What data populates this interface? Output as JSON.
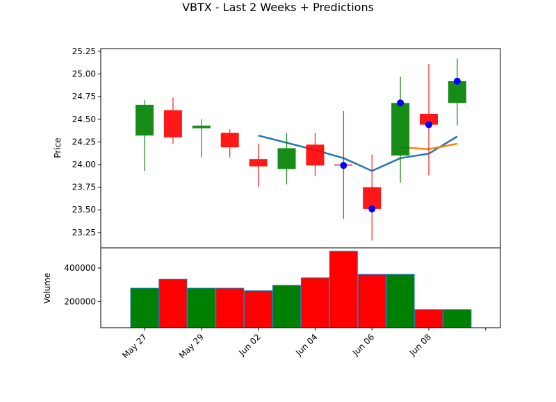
{
  "chart_data": {
    "type": "candlestick",
    "title": "VBTX - Last 2 Weeks + Predictions",
    "x_tick_labels": [
      "May 27",
      "May 29",
      "Jun 02",
      "Jun 04",
      "Jun 06",
      "Jun 08"
    ],
    "price_panel": {
      "ylabel": "Price",
      "ylim": [
        23.08,
        25.28
      ],
      "yticks": [
        23.25,
        23.5,
        23.75,
        24.0,
        24.25,
        24.5,
        24.75,
        25.0,
        25.25
      ],
      "ytick_labels": [
        "23.25",
        "23.50",
        "23.75",
        "24.00",
        "24.25",
        "24.50",
        "24.75",
        "25.00",
        "25.25"
      ],
      "candles": [
        {
          "open": 24.32,
          "high": 24.71,
          "low": 23.93,
          "close": 24.66,
          "direction": "up"
        },
        {
          "open": 24.6,
          "high": 24.74,
          "low": 24.23,
          "close": 24.3,
          "direction": "down"
        },
        {
          "open": 24.4,
          "high": 24.5,
          "low": 24.08,
          "close": 24.43,
          "direction": "up"
        },
        {
          "open": 24.35,
          "high": 24.39,
          "low": 24.08,
          "close": 24.19,
          "direction": "down"
        },
        {
          "open": 24.06,
          "high": 24.23,
          "low": 23.75,
          "close": 23.98,
          "direction": "down"
        },
        {
          "open": 23.95,
          "high": 24.35,
          "low": 23.78,
          "close": 24.18,
          "direction": "up"
        },
        {
          "open": 24.22,
          "high": 24.35,
          "low": 23.87,
          "close": 23.99,
          "direction": "down"
        },
        {
          "open": 24.0,
          "high": 24.59,
          "low": 23.4,
          "close": 23.99,
          "direction": "down"
        },
        {
          "open": 23.75,
          "high": 24.11,
          "low": 23.16,
          "close": 23.51,
          "direction": "down"
        },
        {
          "open": 24.1,
          "high": 24.97,
          "low": 23.8,
          "close": 24.68,
          "direction": "up"
        },
        {
          "open": 24.56,
          "high": 25.11,
          "low": 23.88,
          "close": 24.44,
          "direction": "down"
        },
        {
          "open": 24.68,
          "high": 25.17,
          "low": 24.43,
          "close": 24.92,
          "direction": "up"
        }
      ],
      "markers": [
        {
          "index": 7,
          "value": 23.99
        },
        {
          "index": 8,
          "value": 23.51
        },
        {
          "index": 9,
          "value": 24.68
        },
        {
          "index": 10,
          "value": 24.44
        },
        {
          "index": 11,
          "value": 24.92
        }
      ],
      "lines": [
        {
          "color": "#1f77b4",
          "points": [
            [
              4,
              24.32
            ],
            [
              6,
              24.16
            ],
            [
              7,
              24.07
            ],
            [
              8,
              23.93
            ],
            [
              9,
              24.07
            ],
            [
              10,
              24.12
            ],
            [
              11,
              24.31
            ]
          ]
        },
        {
          "color": "#ff7f0e",
          "points": [
            [
              9,
              24.19
            ],
            [
              10,
              24.17
            ],
            [
              11,
              24.23
            ]
          ]
        }
      ]
    },
    "volume_panel": {
      "ylabel": "Volume",
      "ylim": [
        45000,
        520000
      ],
      "yticks": [
        200000,
        400000
      ],
      "ytick_labels": [
        "200000",
        "400000"
      ],
      "bars": [
        {
          "value": 280000,
          "direction": "up"
        },
        {
          "value": 333000,
          "direction": "down"
        },
        {
          "value": 280000,
          "direction": "up"
        },
        {
          "value": 280000,
          "direction": "down"
        },
        {
          "value": 265000,
          "direction": "down"
        },
        {
          "value": 297000,
          "direction": "up"
        },
        {
          "value": 342000,
          "direction": "down"
        },
        {
          "value": 500000,
          "direction": "down"
        },
        {
          "value": 362000,
          "direction": "down"
        },
        {
          "value": 362000,
          "direction": "up"
        },
        {
          "value": 153000,
          "direction": "down"
        },
        {
          "value": 153000,
          "direction": "up"
        }
      ]
    },
    "colors": {
      "up": "#008000",
      "down": "#ff0000",
      "bar_edge": "#1f77b4",
      "marker": "#0000ff"
    }
  }
}
